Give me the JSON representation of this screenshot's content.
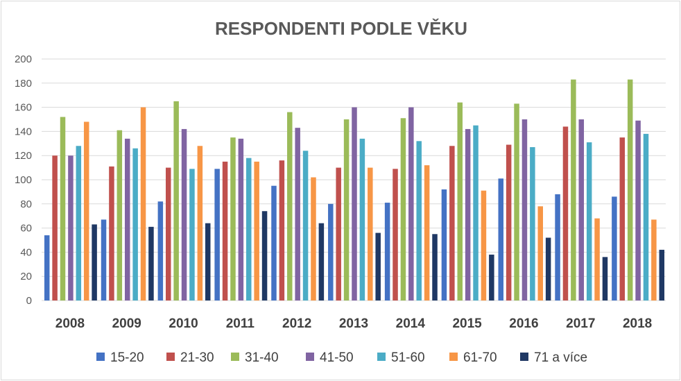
{
  "chart_data": {
    "type": "bar",
    "title": "RESPONDENTI PODLE VĚKU",
    "xlabel": "",
    "ylabel": "",
    "ylim": [
      0,
      200
    ],
    "yticks": [
      0,
      20,
      40,
      60,
      80,
      100,
      120,
      140,
      160,
      180,
      200
    ],
    "grid": true,
    "legend_position": "bottom",
    "categories": [
      "2008",
      "2009",
      "2010",
      "2011",
      "2012",
      "2013",
      "2014",
      "2015",
      "2016",
      "2017",
      "2018"
    ],
    "series": [
      {
        "name": "15-20",
        "color": "#4472c4",
        "values": [
          54,
          67,
          82,
          109,
          95,
          80,
          81,
          92,
          101,
          88,
          86
        ]
      },
      {
        "name": "21-30",
        "color": "#c0504d",
        "values": [
          120,
          111,
          110,
          115,
          116,
          110,
          109,
          128,
          129,
          144,
          135
        ]
      },
      {
        "name": "31-40",
        "color": "#9bbb59",
        "values": [
          152,
          141,
          165,
          135,
          156,
          150,
          151,
          164,
          163,
          183,
          183
        ]
      },
      {
        "name": "41-50",
        "color": "#8064a2",
        "values": [
          120,
          134,
          142,
          134,
          143,
          160,
          160,
          142,
          150,
          150,
          149
        ]
      },
      {
        "name": "51-60",
        "color": "#4bacc6",
        "values": [
          128,
          126,
          109,
          118,
          124,
          134,
          132,
          145,
          127,
          131,
          138
        ]
      },
      {
        "name": "61-70",
        "color": "#f79646",
        "values": [
          148,
          160,
          128,
          115,
          102,
          110,
          112,
          91,
          78,
          68,
          67
        ]
      },
      {
        "name": "71 a více",
        "color": "#1f3864",
        "values": [
          63,
          61,
          64,
          74,
          64,
          56,
          55,
          38,
          52,
          36,
          42
        ]
      }
    ]
  },
  "colors": {
    "grid": "#d9d9d9",
    "axis_text": "#595959",
    "category_text": "#404040",
    "background": "#ffffff"
  }
}
